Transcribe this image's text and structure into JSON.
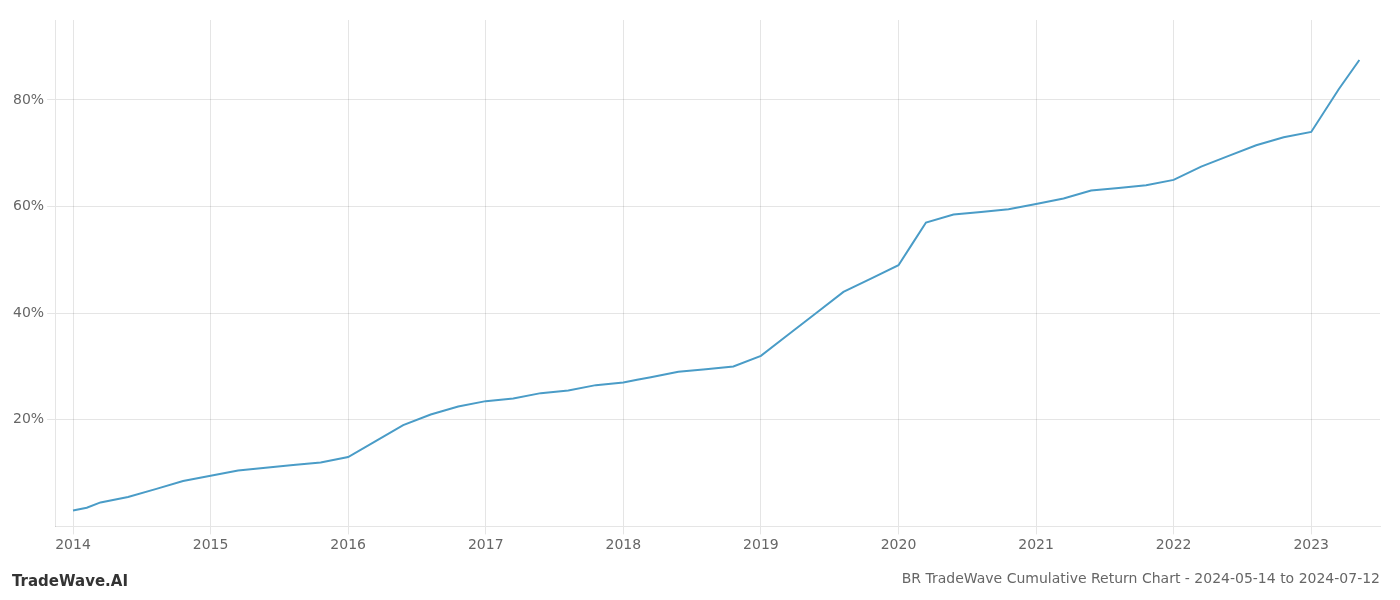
{
  "chart_data": {
    "type": "line",
    "title": "BR TradeWave Cumulative Return Chart - 2024-05-14 to 2024-07-12",
    "annotations": [
      {
        "text": "TradeWave.AI"
      }
    ],
    "color": "#4A9CC7",
    "grid": true,
    "x": [
      2014.0,
      2014.1,
      2014.2,
      2014.4,
      2014.6,
      2014.8,
      2015.0,
      2015.2,
      2015.4,
      2015.6,
      2015.8,
      2016.0,
      2016.2,
      2016.4,
      2016.6,
      2016.8,
      2017.0,
      2017.2,
      2017.4,
      2017.6,
      2017.8,
      2018.0,
      2018.1,
      2018.2,
      2018.3,
      2018.4,
      2018.6,
      2018.8,
      2019.0,
      2019.2,
      2019.4,
      2019.6,
      2019.8,
      2020.0,
      2020.1,
      2020.2,
      2020.4,
      2020.6,
      2020.8,
      2021.0,
      2021.2,
      2021.4,
      2021.6,
      2021.8,
      2022.0,
      2022.2,
      2022.4,
      2022.6,
      2022.8,
      2023.0,
      2023.2,
      2023.35
    ],
    "values": [
      3.0,
      3.5,
      4.5,
      5.5,
      7.0,
      8.5,
      9.5,
      10.5,
      11.0,
      11.5,
      12.0,
      13.0,
      16.0,
      19.0,
      21.0,
      22.5,
      23.5,
      24.0,
      25.0,
      25.5,
      26.5,
      27.0,
      27.5,
      28.0,
      28.5,
      29.0,
      29.5,
      30.0,
      32.0,
      36.0,
      40.0,
      44.0,
      46.5,
      49.0,
      53.0,
      57.0,
      58.5,
      59.0,
      59.5,
      60.5,
      61.5,
      63.0,
      63.5,
      64.0,
      65.0,
      67.5,
      69.5,
      71.5,
      73.0,
      74.0,
      82.0,
      87.5
    ],
    "xlim": [
      2013.87,
      2023.5
    ],
    "xticks": [
      2014,
      2015,
      2016,
      2017,
      2018,
      2019,
      2020,
      2021,
      2022,
      2023
    ],
    "ylim": [
      0,
      95
    ],
    "yticks": [
      {
        "value": 20,
        "label": "20%"
      },
      {
        "value": 40,
        "label": "40%"
      },
      {
        "value": 60,
        "label": "60%"
      },
      {
        "value": 80,
        "label": "80%"
      }
    ]
  }
}
